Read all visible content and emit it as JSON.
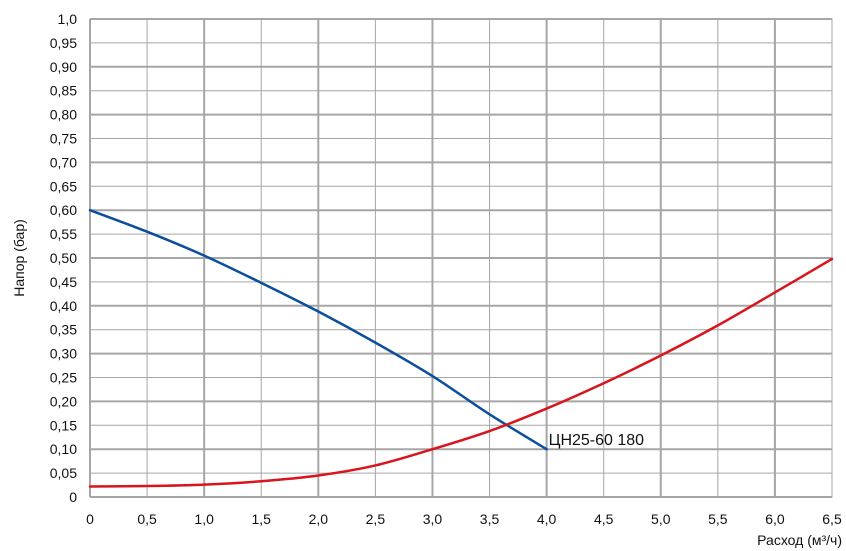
{
  "chart_data": {
    "type": "line",
    "title": "",
    "xlabel": "Расход (м³/ч)",
    "ylabel": "Напор (бар)",
    "xlim": [
      0,
      6.5
    ],
    "ylim": [
      0,
      1.0
    ],
    "x_ticks": [
      0,
      0.5,
      1.0,
      1.5,
      2.0,
      2.5,
      3.0,
      3.5,
      4.0,
      4.5,
      5.0,
      5.5,
      6.0,
      6.5
    ],
    "x_tick_labels": [
      "0",
      "0,5",
      "1,0",
      "1,5",
      "2,0",
      "2,5",
      "3,0",
      "3,5",
      "4,0",
      "4,5",
      "5,0",
      "5,5",
      "6,0",
      "6,5"
    ],
    "y_ticks": [
      0,
      0.05,
      0.1,
      0.15,
      0.2,
      0.25,
      0.3,
      0.35,
      0.4,
      0.45,
      0.5,
      0.55,
      0.6,
      0.65,
      0.7,
      0.75,
      0.8,
      0.85,
      0.9,
      0.95,
      1.0
    ],
    "y_tick_labels": [
      "0",
      "0,05",
      "0,10",
      "0,15",
      "0,20",
      "0,25",
      "0,30",
      "0,35",
      "0,40",
      "0,45",
      "0,50",
      "0,55",
      "0,60",
      "0,65",
      "0,70",
      "0,75",
      "0,80",
      "0,85",
      "0,90",
      "0,95",
      "1,0"
    ],
    "grid": true,
    "series": [
      {
        "name": "ЦН25-60 180",
        "color": "#0b4f9c",
        "x": [
          0,
          0.5,
          1.0,
          1.5,
          2.0,
          2.5,
          3.0,
          3.5,
          4.0
        ],
        "y": [
          0.6,
          0.555,
          0.505,
          0.448,
          0.388,
          0.323,
          0.253,
          0.173,
          0.1
        ]
      },
      {
        "name": "",
        "color": "#d8141c",
        "x": [
          0,
          0.5,
          1.0,
          1.5,
          2.0,
          2.5,
          3.0,
          3.5,
          4.0,
          4.5,
          5.0,
          5.5,
          6.0,
          6.5
        ],
        "y": [
          0.022,
          0.023,
          0.026,
          0.033,
          0.045,
          0.066,
          0.1,
          0.138,
          0.185,
          0.238,
          0.296,
          0.359,
          0.428,
          0.498
        ]
      }
    ],
    "annotations": [
      {
        "text": "ЦН25-60 180",
        "x": 4.0,
        "y": 0.1
      }
    ]
  }
}
